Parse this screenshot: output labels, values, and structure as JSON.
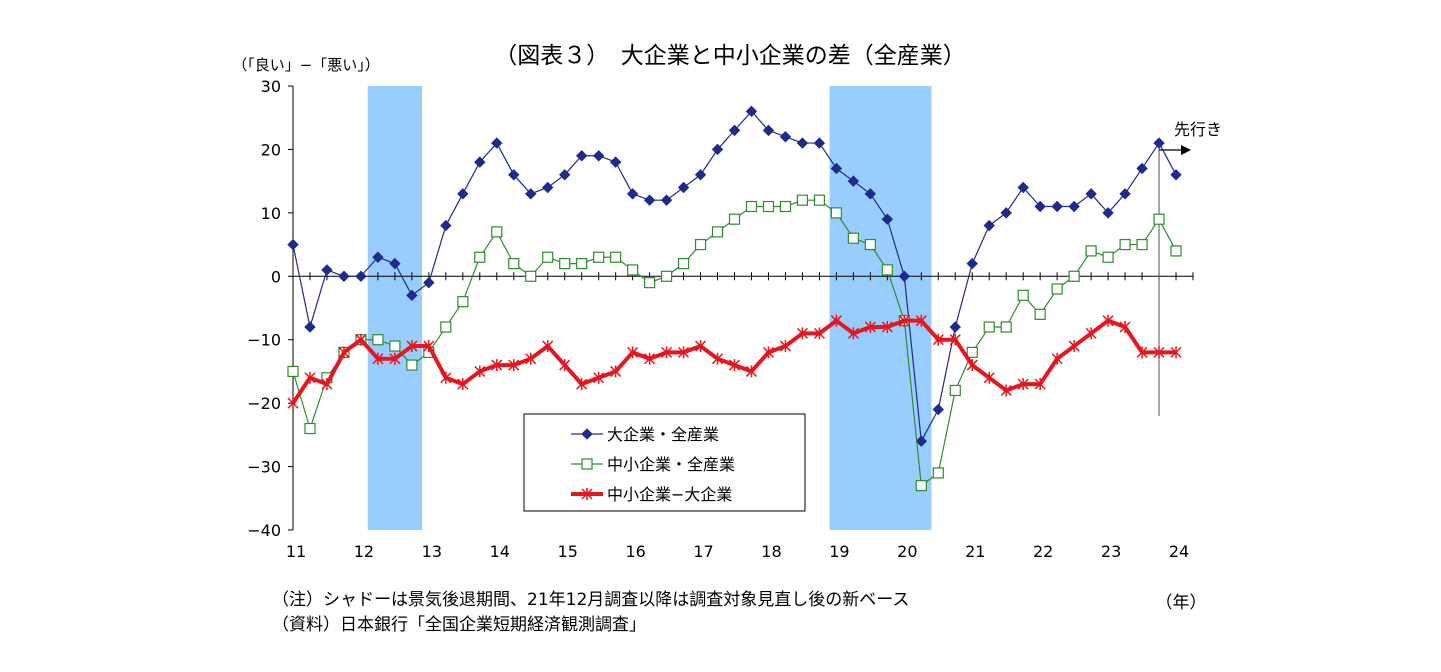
{
  "chart_data": {
    "type": "line",
    "title": "（図表３）　大企業と中小企業の差（全産業）",
    "ylabel": "（「良い」−「悪い」）",
    "xlabel": "（年）",
    "ylim": [
      -40,
      30
    ],
    "yticks": [
      "30",
      "20",
      "10",
      "0",
      "−10",
      "−20",
      "−30",
      "−40"
    ],
    "yticks_values": [
      30,
      20,
      10,
      0,
      -10,
      -20,
      -30,
      -40
    ],
    "xticks": [
      "11",
      "12",
      "13",
      "14",
      "15",
      "16",
      "17",
      "18",
      "19",
      "20",
      "21",
      "22",
      "23",
      "24"
    ],
    "xticks_values": [
      2011,
      2012,
      2013,
      2014,
      2015,
      2016,
      2017,
      2018,
      2019,
      2020,
      2021,
      2022,
      2023,
      2024
    ],
    "recession_shading": [
      {
        "start": 2012.1,
        "end": 2012.9
      },
      {
        "start": 2018.9,
        "end": 2020.4
      }
    ],
    "forecast_label": "先行き",
    "legend_position": "center-bottom",
    "x": [
      2011.0,
      2011.25,
      2011.5,
      2011.75,
      2012.0,
      2012.25,
      2012.5,
      2012.75,
      2013.0,
      2013.25,
      2013.5,
      2013.75,
      2014.0,
      2014.25,
      2014.5,
      2014.75,
      2015.0,
      2015.25,
      2015.5,
      2015.75,
      2016.0,
      2016.25,
      2016.5,
      2016.75,
      2017.0,
      2017.25,
      2017.5,
      2017.75,
      2018.0,
      2018.25,
      2018.5,
      2018.75,
      2019.0,
      2019.25,
      2019.5,
      2019.75,
      2020.0,
      2020.25,
      2020.5,
      2020.75,
      2021.0,
      2021.25,
      2021.5,
      2021.75,
      2022.0,
      2022.25,
      2022.5,
      2022.75,
      2023.0,
      2023.25,
      2023.5,
      2023.75,
      2024.0
    ],
    "series": [
      {
        "name": "大企業・全産業",
        "color": "#1F2A8C",
        "marker": "diamond",
        "values": [
          5,
          -8,
          1,
          0,
          0,
          3,
          2,
          -3,
          -1,
          8,
          13,
          18,
          21,
          16,
          13,
          14,
          16,
          19,
          19,
          18,
          13,
          12,
          12,
          14,
          16,
          20,
          23,
          26,
          23,
          22,
          21,
          21,
          17,
          15,
          13,
          9,
          0,
          -26,
          -21,
          -8,
          2,
          8,
          10,
          14,
          11,
          11,
          11,
          13,
          10,
          13,
          17,
          21,
          16
        ]
      },
      {
        "name": "中小企業・全産業",
        "color": "#2E8B2E",
        "marker": "square",
        "values": [
          -15,
          -24,
          -16,
          -12,
          -10,
          -10,
          -11,
          -14,
          -12,
          -8,
          -4,
          3,
          7,
          2,
          0,
          3,
          2,
          2,
          3,
          3,
          1,
          -1,
          0,
          2,
          5,
          7,
          9,
          11,
          11,
          11,
          12,
          12,
          10,
          6,
          5,
          1,
          -7,
          -33,
          -31,
          -18,
          -12,
          -8,
          -8,
          -3,
          -6,
          -2,
          0,
          4,
          3,
          5,
          5,
          9,
          4
        ]
      },
      {
        "name": "中小企業−大企業",
        "color": "#E8141E",
        "marker": "star",
        "values": [
          -20,
          -16,
          -17,
          -12,
          -10,
          -13,
          -13,
          -11,
          -11,
          -16,
          -17,
          -15,
          -14,
          -14,
          -13,
          -11,
          -14,
          -17,
          -16,
          -15,
          -12,
          -13,
          -12,
          -12,
          -11,
          -13,
          -14,
          -15,
          -12,
          -11,
          -9,
          -9,
          -7,
          -9,
          -8,
          -8,
          -7,
          -7,
          -10,
          -10,
          -14,
          -16,
          -18,
          -17,
          -17,
          -13,
          -11,
          -9,
          -7,
          -8,
          -12,
          -12,
          -12
        ]
      }
    ]
  },
  "notes": [
    "（注）シャドーは景気後退期間、21年12月調査以降は調査対象見直し後の新ベース",
    "（資料）日本銀行「全国企業短期経済観測調査」"
  ]
}
